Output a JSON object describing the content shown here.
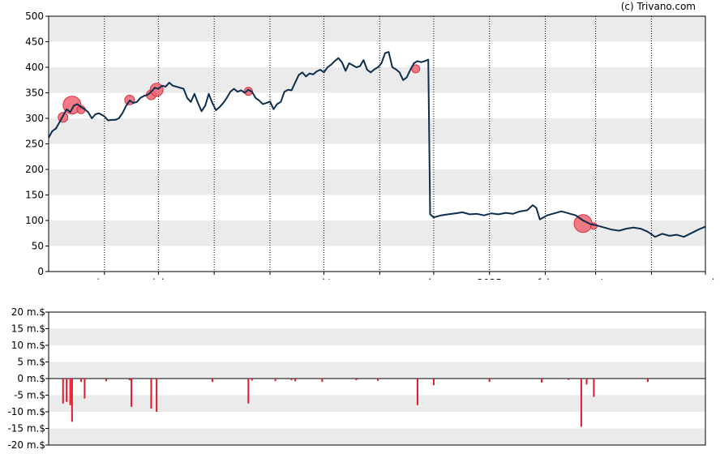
{
  "credit": "(c) Trivano.com",
  "colors": {
    "price_line": "#0d2e4f",
    "bubble_fill": "#f06470",
    "bubble_stroke": "#d93040",
    "volume_bar": "#e01a2a",
    "band": "#ebebeb",
    "axis": "#000000"
  },
  "chart_data": [
    {
      "type": "line",
      "title": "",
      "xlabel": "",
      "ylabel": "",
      "ylim": [
        0,
        500
      ],
      "yticks": [
        "0",
        "50",
        "100",
        "150",
        "200",
        "250",
        "300",
        "350",
        "400",
        "450",
        "500"
      ],
      "xlim": [
        "2024-05-01",
        "2025-05-01"
      ],
      "x_ticks": [
        {
          "date": "2024-06-01",
          "label": "jun"
        },
        {
          "date": "2024-07-01",
          "label": "jul"
        },
        {
          "date": "2024-08-01",
          "label": "aug"
        },
        {
          "date": "2024-09-01",
          "label": "sep"
        },
        {
          "date": "2024-10-01",
          "label": "okt"
        },
        {
          "date": "2024-11-01",
          "label": "nov"
        },
        {
          "date": "2024-12-01",
          "label": "dec"
        },
        {
          "date": "2025-01-01",
          "label": "2025"
        },
        {
          "date": "2025-02-01",
          "label": "feb"
        },
        {
          "date": "2025-03-01",
          "label": "mrt"
        },
        {
          "date": "2025-04-01",
          "label": "apr"
        },
        {
          "date": "2025-05-01",
          "label": "mei"
        }
      ],
      "grid": true,
      "series": [
        {
          "points": [
            [
              "2024-05-01",
              262
            ],
            [
              "2024-05-03",
              275
            ],
            [
              "2024-05-05",
              280
            ],
            [
              "2024-05-07",
              292
            ],
            [
              "2024-05-09",
              305
            ],
            [
              "2024-05-11",
              318
            ],
            [
              "2024-05-13",
              312
            ],
            [
              "2024-05-15",
              325
            ],
            [
              "2024-05-17",
              328
            ],
            [
              "2024-05-19",
              322
            ],
            [
              "2024-05-21",
              318
            ],
            [
              "2024-05-23",
              312
            ],
            [
              "2024-05-25",
              300
            ],
            [
              "2024-05-27",
              308
            ],
            [
              "2024-05-29",
              310
            ],
            [
              "2024-06-01",
              304
            ],
            [
              "2024-06-03",
              296
            ],
            [
              "2024-06-05",
              297
            ],
            [
              "2024-06-07",
              297
            ],
            [
              "2024-06-09",
              300
            ],
            [
              "2024-06-11",
              310
            ],
            [
              "2024-06-13",
              324
            ],
            [
              "2024-06-15",
              335
            ],
            [
              "2024-06-17",
              330
            ],
            [
              "2024-06-19",
              332
            ],
            [
              "2024-06-21",
              340
            ],
            [
              "2024-06-23",
              344
            ],
            [
              "2024-06-25",
              346
            ],
            [
              "2024-06-27",
              352
            ],
            [
              "2024-06-29",
              360
            ],
            [
              "2024-07-01",
              358
            ],
            [
              "2024-07-03",
              364
            ],
            [
              "2024-07-05",
              362
            ],
            [
              "2024-07-07",
              370
            ],
            [
              "2024-07-09",
              364
            ],
            [
              "2024-07-11",
              362
            ],
            [
              "2024-07-13",
              360
            ],
            [
              "2024-07-15",
              358
            ],
            [
              "2024-07-17",
              340
            ],
            [
              "2024-07-19",
              332
            ],
            [
              "2024-07-21",
              348
            ],
            [
              "2024-07-23",
              330
            ],
            [
              "2024-07-25",
              314
            ],
            [
              "2024-07-27",
              325
            ],
            [
              "2024-07-29",
              348
            ],
            [
              "2024-07-31",
              330
            ],
            [
              "2024-08-02",
              316
            ],
            [
              "2024-08-04",
              322
            ],
            [
              "2024-08-06",
              330
            ],
            [
              "2024-08-08",
              340
            ],
            [
              "2024-08-10",
              352
            ],
            [
              "2024-08-12",
              358
            ],
            [
              "2024-08-14",
              352
            ],
            [
              "2024-08-16",
              355
            ],
            [
              "2024-08-18",
              350
            ],
            [
              "2024-08-20",
              356
            ],
            [
              "2024-08-22",
              352
            ],
            [
              "2024-08-24",
              340
            ],
            [
              "2024-08-26",
              335
            ],
            [
              "2024-08-28",
              328
            ],
            [
              "2024-08-30",
              330
            ],
            [
              "2024-09-01",
              333
            ],
            [
              "2024-09-03",
              318
            ],
            [
              "2024-09-05",
              328
            ],
            [
              "2024-09-07",
              332
            ],
            [
              "2024-09-09",
              352
            ],
            [
              "2024-09-11",
              356
            ],
            [
              "2024-09-13",
              355
            ],
            [
              "2024-09-15",
              370
            ],
            [
              "2024-09-17",
              385
            ],
            [
              "2024-09-19",
              390
            ],
            [
              "2024-09-21",
              382
            ],
            [
              "2024-09-23",
              388
            ],
            [
              "2024-09-25",
              386
            ],
            [
              "2024-09-27",
              392
            ],
            [
              "2024-09-29",
              395
            ],
            [
              "2024-10-01",
              390
            ],
            [
              "2024-10-03",
              400
            ],
            [
              "2024-10-05",
              405
            ],
            [
              "2024-10-07",
              412
            ],
            [
              "2024-10-09",
              418
            ],
            [
              "2024-10-11",
              410
            ],
            [
              "2024-10-13",
              393
            ],
            [
              "2024-10-15",
              408
            ],
            [
              "2024-10-17",
              404
            ],
            [
              "2024-10-19",
              400
            ],
            [
              "2024-10-21",
              402
            ],
            [
              "2024-10-23",
              414
            ],
            [
              "2024-10-25",
              395
            ],
            [
              "2024-10-27",
              390
            ],
            [
              "2024-10-29",
              396
            ],
            [
              "2024-10-31",
              400
            ],
            [
              "2024-11-02",
              408
            ],
            [
              "2024-11-04",
              428
            ],
            [
              "2024-11-06",
              430
            ],
            [
              "2024-11-08",
              400
            ],
            [
              "2024-11-10",
              396
            ],
            [
              "2024-11-12",
              390
            ],
            [
              "2024-11-14",
              375
            ],
            [
              "2024-11-16",
              380
            ],
            [
              "2024-11-18",
              395
            ],
            [
              "2024-11-20",
              408
            ],
            [
              "2024-11-22",
              412
            ],
            [
              "2024-11-24",
              410
            ],
            [
              "2024-11-26",
              412
            ],
            [
              "2024-11-28",
              415
            ],
            [
              "2024-11-29",
              112
            ],
            [
              "2024-12-01",
              106
            ],
            [
              "2024-12-05",
              110
            ],
            [
              "2024-12-09",
              112
            ],
            [
              "2024-12-13",
              114
            ],
            [
              "2024-12-17",
              116
            ],
            [
              "2024-12-21",
              112
            ],
            [
              "2024-12-25",
              113
            ],
            [
              "2024-12-29",
              110
            ],
            [
              "2025-01-02",
              114
            ],
            [
              "2025-01-06",
              112
            ],
            [
              "2025-01-10",
              115
            ],
            [
              "2025-01-14",
              113
            ],
            [
              "2025-01-18",
              118
            ],
            [
              "2025-01-22",
              120
            ],
            [
              "2025-01-25",
              130
            ],
            [
              "2025-01-27",
              125
            ],
            [
              "2025-01-29",
              102
            ],
            [
              "2025-02-02",
              110
            ],
            [
              "2025-02-06",
              114
            ],
            [
              "2025-02-10",
              118
            ],
            [
              "2025-02-14",
              114
            ],
            [
              "2025-02-18",
              110
            ],
            [
              "2025-02-22",
              100
            ],
            [
              "2025-02-26",
              93
            ],
            [
              "2025-03-02",
              90
            ],
            [
              "2025-03-06",
              86
            ],
            [
              "2025-03-10",
              82
            ],
            [
              "2025-03-14",
              80
            ],
            [
              "2025-03-18",
              84
            ],
            [
              "2025-03-22",
              86
            ],
            [
              "2025-03-26",
              84
            ],
            [
              "2025-03-30",
              78
            ],
            [
              "2025-04-03",
              68
            ],
            [
              "2025-04-07",
              74
            ],
            [
              "2025-04-11",
              70
            ],
            [
              "2025-04-15",
              72
            ],
            [
              "2025-04-19",
              68
            ],
            [
              "2025-04-23",
              75
            ],
            [
              "2025-04-27",
              82
            ],
            [
              "2025-05-01",
              88
            ]
          ]
        }
      ],
      "events": [
        {
          "date": "2024-05-09",
          "value": 302,
          "size": 6
        },
        {
          "date": "2024-05-14",
          "value": 326,
          "size": 11
        },
        {
          "date": "2024-05-19",
          "value": 317,
          "size": 5
        },
        {
          "date": "2024-06-15",
          "value": 336,
          "size": 6
        },
        {
          "date": "2024-06-27",
          "value": 346,
          "size": 6
        },
        {
          "date": "2024-06-30",
          "value": 356,
          "size": 8
        },
        {
          "date": "2024-08-20",
          "value": 353,
          "size": 5
        },
        {
          "date": "2024-11-21",
          "value": 397,
          "size": 5
        },
        {
          "date": "2025-02-22",
          "value": 94,
          "size": 11
        },
        {
          "date": "2025-02-28",
          "value": 89,
          "size": 4
        }
      ]
    },
    {
      "type": "bar",
      "title": "",
      "xlabel": "",
      "ylabel": "",
      "ylim": [
        -20,
        20
      ],
      "yticks": [
        "-20 m.$",
        "-15 m.$",
        "-10 m.$",
        "-5 m.$",
        "0 m.$",
        "5 m.$",
        "10 m.$",
        "15 m.$",
        "20 m.$"
      ],
      "xlim": [
        "2024-05-01",
        "2025-05-01"
      ],
      "grid": true,
      "bars": [
        {
          "date": "2024-05-09",
          "value": -7.5
        },
        {
          "date": "2024-05-11",
          "value": -7
        },
        {
          "date": "2024-05-13",
          "value": -8
        },
        {
          "date": "2024-05-14",
          "value": -13
        },
        {
          "date": "2024-05-19",
          "value": -1
        },
        {
          "date": "2024-05-21",
          "value": -6
        },
        {
          "date": "2024-06-02",
          "value": -0.8
        },
        {
          "date": "2024-06-15",
          "value": -0.5
        },
        {
          "date": "2024-06-16",
          "value": -8.5
        },
        {
          "date": "2024-06-27",
          "value": -9
        },
        {
          "date": "2024-06-30",
          "value": -10
        },
        {
          "date": "2024-07-31",
          "value": -1
        },
        {
          "date": "2024-08-20",
          "value": -7.5
        },
        {
          "date": "2024-08-22",
          "value": -0.6
        },
        {
          "date": "2024-09-04",
          "value": -0.8
        },
        {
          "date": "2024-09-13",
          "value": -0.5
        },
        {
          "date": "2024-09-15",
          "value": -0.8
        },
        {
          "date": "2024-09-30",
          "value": -1
        },
        {
          "date": "2024-10-19",
          "value": -0.5
        },
        {
          "date": "2024-10-31",
          "value": -0.7
        },
        {
          "date": "2024-11-22",
          "value": -8
        },
        {
          "date": "2024-12-01",
          "value": -2
        },
        {
          "date": "2025-01-01",
          "value": -1
        },
        {
          "date": "2025-01-30",
          "value": -1.2
        },
        {
          "date": "2025-02-14",
          "value": -0.4
        },
        {
          "date": "2025-02-21",
          "value": -14.5
        },
        {
          "date": "2025-02-24",
          "value": -1.8
        },
        {
          "date": "2025-02-28",
          "value": -5.5
        },
        {
          "date": "2025-03-30",
          "value": -1
        }
      ]
    }
  ]
}
